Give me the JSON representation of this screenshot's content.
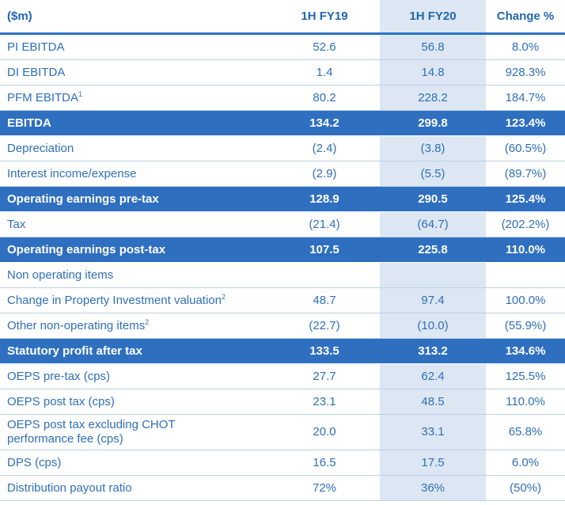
{
  "header": {
    "label": "($m)",
    "col1": "1H FY19",
    "col2": "1H FY20",
    "col3": "Change %"
  },
  "rows": [
    {
      "label": "PI EBITDA",
      "sup": "",
      "v1": "52.6",
      "v2": "56.8",
      "v3": "8.0%",
      "highlight": false,
      "tall": false
    },
    {
      "label": "DI EBITDA",
      "sup": "",
      "v1": "1.4",
      "v2": "14.8",
      "v3": "928.3%",
      "highlight": false,
      "tall": false
    },
    {
      "label": "PFM EBITDA",
      "sup": "1",
      "v1": "80.2",
      "v2": "228.2",
      "v3": "184.7%",
      "highlight": false,
      "tall": false
    },
    {
      "label": "EBITDA",
      "sup": "",
      "v1": "134.2",
      "v2": "299.8",
      "v3": "123.4%",
      "highlight": true,
      "tall": false
    },
    {
      "label": "Depreciation",
      "sup": "",
      "v1": "(2.4)",
      "v2": "(3.8)",
      "v3": "(60.5%)",
      "highlight": false,
      "tall": false
    },
    {
      "label": "Interest income/expense",
      "sup": "",
      "v1": "(2.9)",
      "v2": "(5.5)",
      "v3": "(89.7%)",
      "highlight": false,
      "tall": false
    },
    {
      "label": "Operating earnings pre-tax",
      "sup": "",
      "v1": "128.9",
      "v2": "290.5",
      "v3": "125.4%",
      "highlight": true,
      "tall": false
    },
    {
      "label": "Tax",
      "sup": "",
      "v1": "(21.4)",
      "v2": "(64.7)",
      "v3": "(202.2%)",
      "highlight": false,
      "tall": false
    },
    {
      "label": "Operating earnings post-tax",
      "sup": "",
      "v1": "107.5",
      "v2": "225.8",
      "v3": "110.0%",
      "highlight": true,
      "tall": false
    },
    {
      "label": "Non operating items",
      "sup": "",
      "v1": "",
      "v2": "",
      "v3": "",
      "highlight": false,
      "tall": false
    },
    {
      "label": "Change in Property Investment valuation",
      "sup": "2",
      "v1": "48.7",
      "v2": "97.4",
      "v3": "100.0%",
      "highlight": false,
      "tall": false
    },
    {
      "label": "Other non-operating items",
      "sup": "2",
      "v1": "(22.7)",
      "v2": "(10.0)",
      "v3": "(55.9%)",
      "highlight": false,
      "tall": false
    },
    {
      "label": "Statutory profit after tax",
      "sup": "",
      "v1": "133.5",
      "v2": "313.2",
      "v3": "134.6%",
      "highlight": true,
      "tall": false
    },
    {
      "label": "OEPS pre-tax (cps)",
      "sup": "",
      "v1": "27.7",
      "v2": "62.4",
      "v3": "125.5%",
      "highlight": false,
      "tall": false
    },
    {
      "label": "OEPS post tax (cps)",
      "sup": "",
      "v1": "23.1",
      "v2": "48.5",
      "v3": "110.0%",
      "highlight": false,
      "tall": false
    },
    {
      "label": "OEPS post tax excluding CHOT",
      "label2": "performance fee (cps)",
      "sup": "",
      "v1": "20.0",
      "v2": "33.1",
      "v3": "65.8%",
      "highlight": false,
      "tall": true
    },
    {
      "label": "DPS (cps)",
      "sup": "",
      "v1": "16.5",
      "v2": "17.5",
      "v3": "6.0%",
      "highlight": false,
      "tall": false
    },
    {
      "label": "Distribution payout ratio",
      "sup": "",
      "v1": "72%",
      "v2": "36%",
      "v3": "(50%)",
      "highlight": false,
      "tall": false
    }
  ],
  "colors": {
    "text_blue": "#2f6fba",
    "highlight_row": "#2f6fc0",
    "shaded_column": "#dce7f3"
  }
}
